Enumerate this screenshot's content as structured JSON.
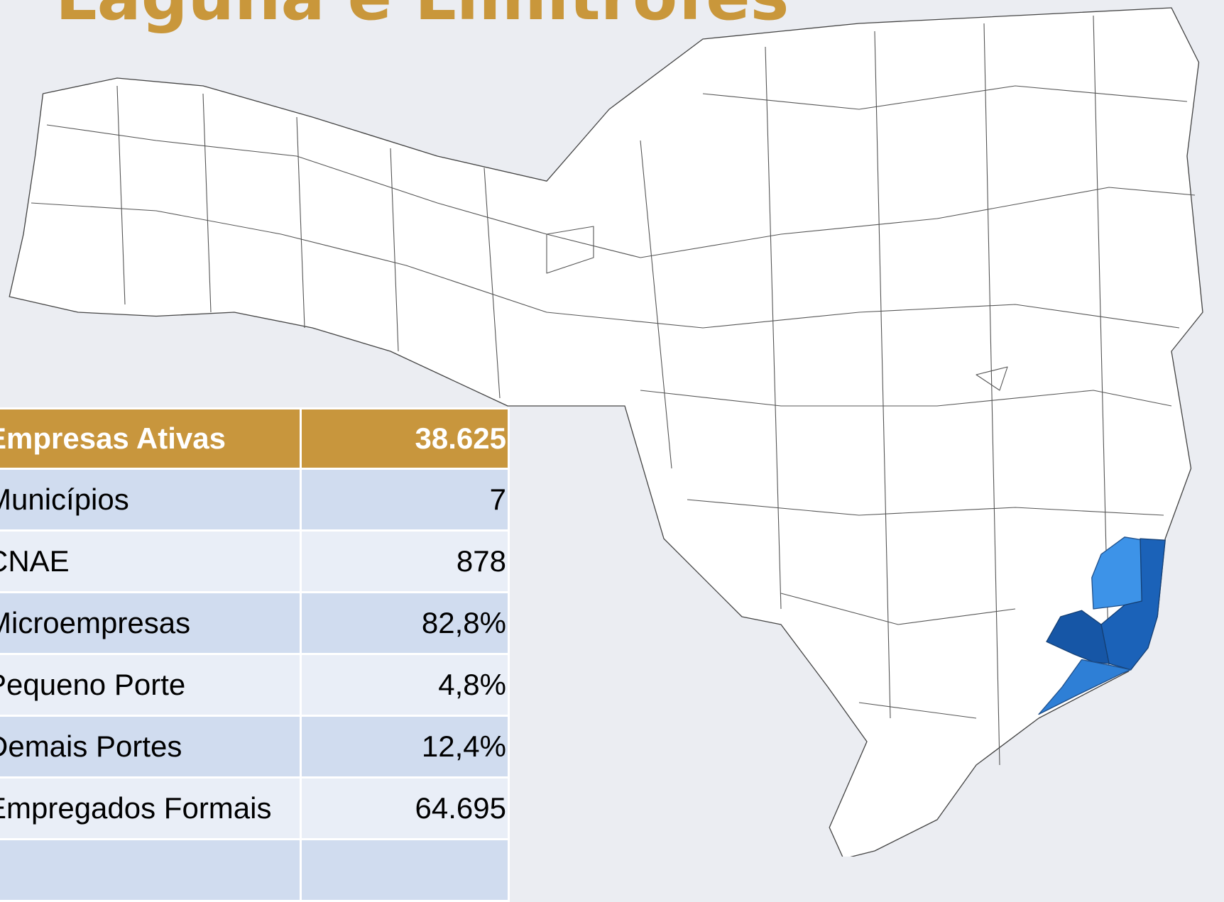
{
  "header": {
    "title": "Laguna e Limítrofes"
  },
  "table": {
    "header": [
      "Empresas Ativas",
      "38.625"
    ],
    "rows": [
      [
        "Municípios",
        "7"
      ],
      [
        "CNAE",
        "878"
      ],
      [
        "Microempresas",
        "82,8%"
      ],
      [
        "Pequeno Porte",
        "4,8%"
      ],
      [
        "Demais Portes",
        "12,4%"
      ],
      [
        "Empregados Formais",
        "64.695"
      ]
    ]
  }
}
